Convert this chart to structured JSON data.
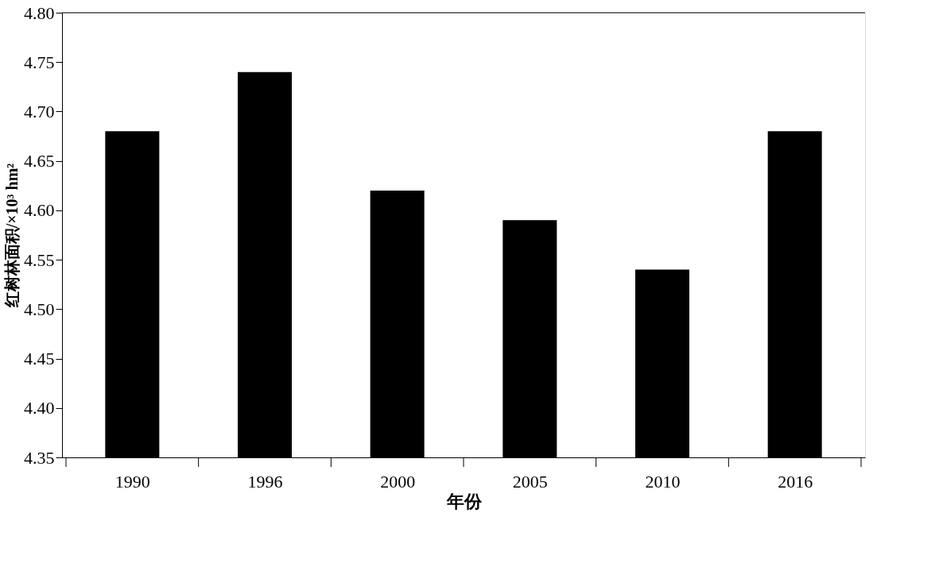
{
  "chart_data": {
    "type": "bar",
    "xlabel": "年份",
    "ylabel": "红树林面积/×10³ hm²",
    "categories": [
      "1990",
      "1996",
      "2000",
      "2005",
      "2010",
      "2016"
    ],
    "values": [
      4.68,
      4.74,
      4.62,
      4.59,
      4.54,
      4.68
    ],
    "color": "#000000",
    "ylim": [
      4.35,
      4.8
    ],
    "yticks": [
      {
        "value": 4.35,
        "label": "4.35"
      },
      {
        "value": 4.4,
        "label": "4.40"
      },
      {
        "value": 4.45,
        "label": "4.45"
      },
      {
        "value": 4.5,
        "label": "4.50"
      },
      {
        "value": 4.55,
        "label": "4.55"
      },
      {
        "value": 4.6,
        "label": "4.60"
      },
      {
        "value": 4.65,
        "label": "4.65"
      },
      {
        "value": 4.7,
        "label": "4.70"
      },
      {
        "value": 4.75,
        "label": "4.75"
      },
      {
        "value": 4.8,
        "label": "4.80"
      }
    ],
    "grid": false
  }
}
